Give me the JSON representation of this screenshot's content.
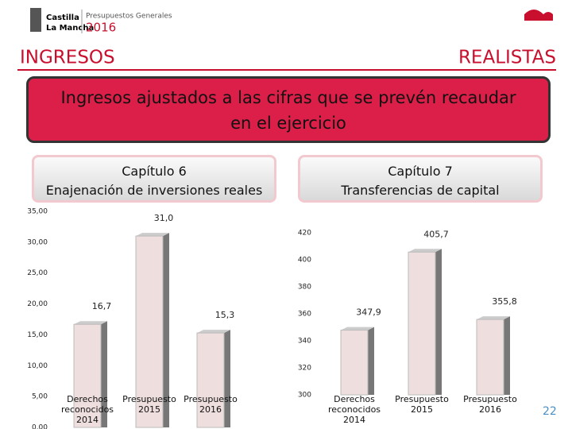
{
  "header": {
    "logo_line1": "Castilla",
    "logo_line2": "La Mancha",
    "subtitle": "Presupuestos Generales",
    "year": "2016"
  },
  "section_left": "INGRESOS",
  "section_right": "REALISTAS",
  "banner": "Ingresos ajustados a las cifras que se prevén recaudar en el ejercicio",
  "chart_data": [
    {
      "type": "bar",
      "title": "Capítulo 6",
      "subtitle": "Enajenación de inversiones reales",
      "categories": [
        "Derechos reconocidos 2014",
        "Presupuesto 2015",
        "Presupuesto 2016"
      ],
      "values": [
        16.7,
        31.0,
        15.3
      ],
      "value_labels": [
        "16,7",
        "31,0",
        "15,3"
      ],
      "color": "#efdede",
      "ylim": [
        0,
        35
      ],
      "yticks": [
        {
          "value": 0,
          "label": "0,00"
        },
        {
          "value": 5,
          "label": "5,00"
        },
        {
          "value": 10,
          "label": "10,00"
        },
        {
          "value": 15,
          "label": "15,00"
        },
        {
          "value": 20,
          "label": "20,00"
        },
        {
          "value": 25,
          "label": "25,00"
        },
        {
          "value": 30,
          "label": "30,00"
        },
        {
          "value": 35,
          "label": "35,00"
        }
      ]
    },
    {
      "type": "bar",
      "title": "Capítulo 7",
      "subtitle": "Transferencias de capital",
      "categories": [
        "Derechos reconocidos 2014",
        "Presupuesto 2015",
        "Presupuesto 2016"
      ],
      "values": [
        347.9,
        405.7,
        355.8
      ],
      "value_labels": [
        "347,9",
        "405,7",
        "355,8"
      ],
      "color": "#efdede",
      "ylim": [
        300,
        420
      ],
      "yticks": [
        300,
        320,
        340,
        360,
        380,
        400,
        420
      ]
    }
  ],
  "page_number": "22"
}
